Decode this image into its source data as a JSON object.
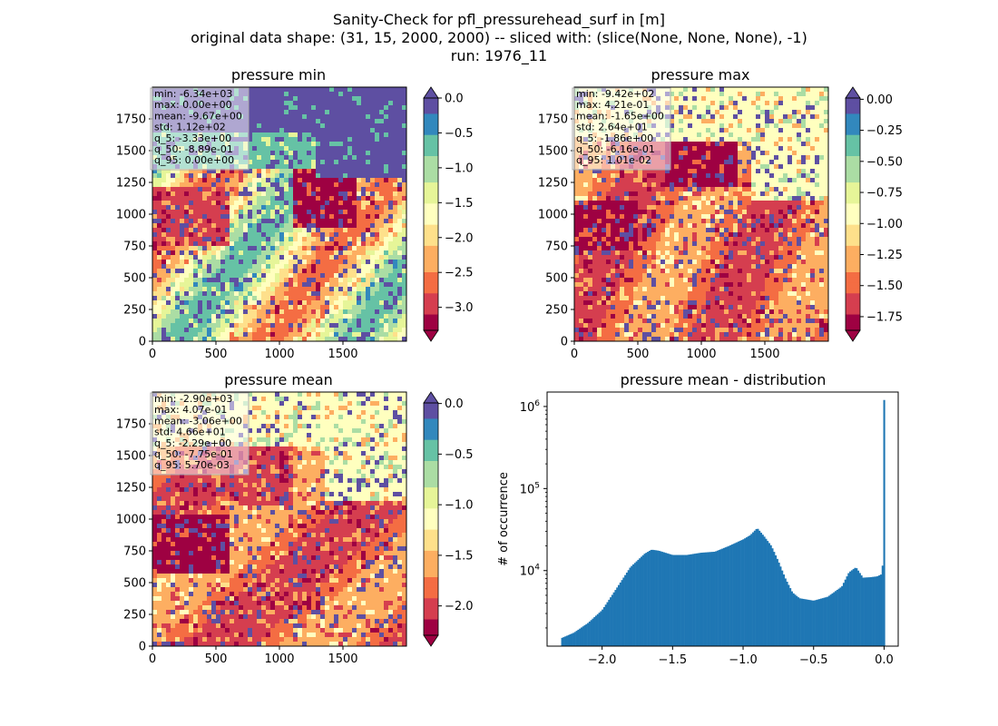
{
  "figure": {
    "title_lines": [
      "Sanity-Check for pfl_pressurehead_surf in [m]",
      "original data shape: (31, 15, 2000, 2000) -- sliced with: (slice(None, None, None), -1)",
      "run: 1976_11"
    ]
  },
  "colors": {
    "spectral": [
      "#9e0142",
      "#d53e4f",
      "#f46d43",
      "#fdae61",
      "#fee08b",
      "#ffffbf",
      "#e6f598",
      "#abdda4",
      "#66c2a5",
      "#3288bd",
      "#5e4fa2"
    ],
    "hist_bar": "#1f77b4"
  },
  "chart_data": [
    {
      "type": "heatmap",
      "title": "pressure min",
      "colormap": "Spectral",
      "x_ticks": [
        0,
        500,
        1000,
        1500
      ],
      "y_ticks": [
        0,
        250,
        500,
        750,
        1000,
        1250,
        1500,
        1750
      ],
      "xlim": [
        0,
        2000
      ],
      "ylim": [
        0,
        2000
      ],
      "colorbar": {
        "vmin": -3.33,
        "vmax": 0.0,
        "ticks": [
          "0.0",
          "−0.5",
          "−1.0",
          "−1.5",
          "−2.0",
          "−2.5",
          "−3.0"
        ],
        "tick_values": [
          0.0,
          -0.5,
          -1.0,
          -1.5,
          -2.0,
          -2.5,
          -3.0
        ],
        "extend": "both"
      },
      "stats": [
        "min: -6.34e+03",
        "max: 0.00e+00",
        "mean: -9.67e+00",
        "std: 1.12e+02",
        "q_5: -3.33e+00",
        "q_50: -8.89e-01",
        "q_95: 0.00e+00"
      ]
    },
    {
      "type": "heatmap",
      "title": "pressure max",
      "colormap": "Spectral",
      "x_ticks": [
        0,
        500,
        1000,
        1500
      ],
      "y_ticks": [
        0,
        250,
        500,
        750,
        1000,
        1250,
        1500,
        1750
      ],
      "xlim": [
        0,
        2000
      ],
      "ylim": [
        0,
        2000
      ],
      "colorbar": {
        "vmin": -1.86,
        "vmax": 0.0101,
        "ticks": [
          "0.00",
          "−0.25",
          "−0.50",
          "−0.75",
          "−1.00",
          "−1.25",
          "−1.50",
          "−1.75"
        ],
        "tick_values": [
          0.0,
          -0.25,
          -0.5,
          -0.75,
          -1.0,
          -1.25,
          -1.5,
          -1.75
        ],
        "extend": "both"
      },
      "stats": [
        "min: -9.42e+02",
        "max: 4.21e-01",
        "mean: -1.65e+00",
        "std: 2.64e+01",
        "q_5: -1.86e+00",
        "q_50: -6.16e-01",
        "q_95: 1.01e-02"
      ]
    },
    {
      "type": "heatmap",
      "title": "pressure mean",
      "colormap": "Spectral",
      "x_ticks": [
        0,
        500,
        1000,
        1500
      ],
      "y_ticks": [
        0,
        250,
        500,
        750,
        1000,
        1250,
        1500,
        1750
      ],
      "xlim": [
        0,
        2000
      ],
      "ylim": [
        0,
        2000
      ],
      "colorbar": {
        "vmin": -2.29,
        "vmax": 0.0057,
        "ticks": [
          "0.0",
          "−0.5",
          "−1.0",
          "−1.5",
          "−2.0"
        ],
        "tick_values": [
          0.0,
          -0.5,
          -1.0,
          -1.5,
          -2.0
        ],
        "extend": "both"
      },
      "stats": [
        "min: -2.90e+03",
        "max: 4.07e-01",
        "mean: -3.06e+00",
        "std: 4.66e+01",
        "q_5: -2.29e+00",
        "q_50: -7.75e-01",
        "q_95: 5.70e-03"
      ]
    },
    {
      "type": "bar",
      "title": "pressure mean - distribution",
      "ylabel": "# of occurrence",
      "xlabel": "",
      "y_scale": "log",
      "xlim": [
        -2.39,
        0.1
      ],
      "ylim": [
        1200,
        1500000
      ],
      "x_ticks": [
        "−2.0",
        "−1.5",
        "−1.0",
        "−0.5",
        "0.0"
      ],
      "x_tick_values": [
        -2.0,
        -1.5,
        -1.0,
        -0.5,
        0.0
      ],
      "y_ticks": [
        "10^4",
        "10^5",
        "10^6"
      ],
      "y_tick_values": [
        10000,
        100000,
        1000000
      ],
      "bin_range": [
        -2.29,
        0.0057
      ],
      "bin_count": 200,
      "profile_x": [
        -2.29,
        -2.2,
        -2.1,
        -2.0,
        -1.9,
        -1.8,
        -1.7,
        -1.65,
        -1.6,
        -1.5,
        -1.4,
        -1.3,
        -1.2,
        -1.1,
        -1.0,
        -0.95,
        -0.9,
        -0.85,
        -0.8,
        -0.75,
        -0.7,
        -0.65,
        -0.6,
        -0.5,
        -0.4,
        -0.3,
        -0.25,
        -0.2,
        -0.15,
        -0.1,
        -0.05,
        -0.02,
        -0.01,
        0.0
      ],
      "profile_y": [
        1500,
        1750,
        2300,
        3300,
        6000,
        11000,
        16000,
        18000,
        17500,
        15500,
        15500,
        16500,
        17000,
        20000,
        24000,
        27000,
        33000,
        26000,
        20000,
        13000,
        8000,
        5400,
        4600,
        4300,
        4800,
        6400,
        9500,
        11000,
        8200,
        8300,
        8500,
        9000,
        12000,
        1200000
      ]
    }
  ]
}
